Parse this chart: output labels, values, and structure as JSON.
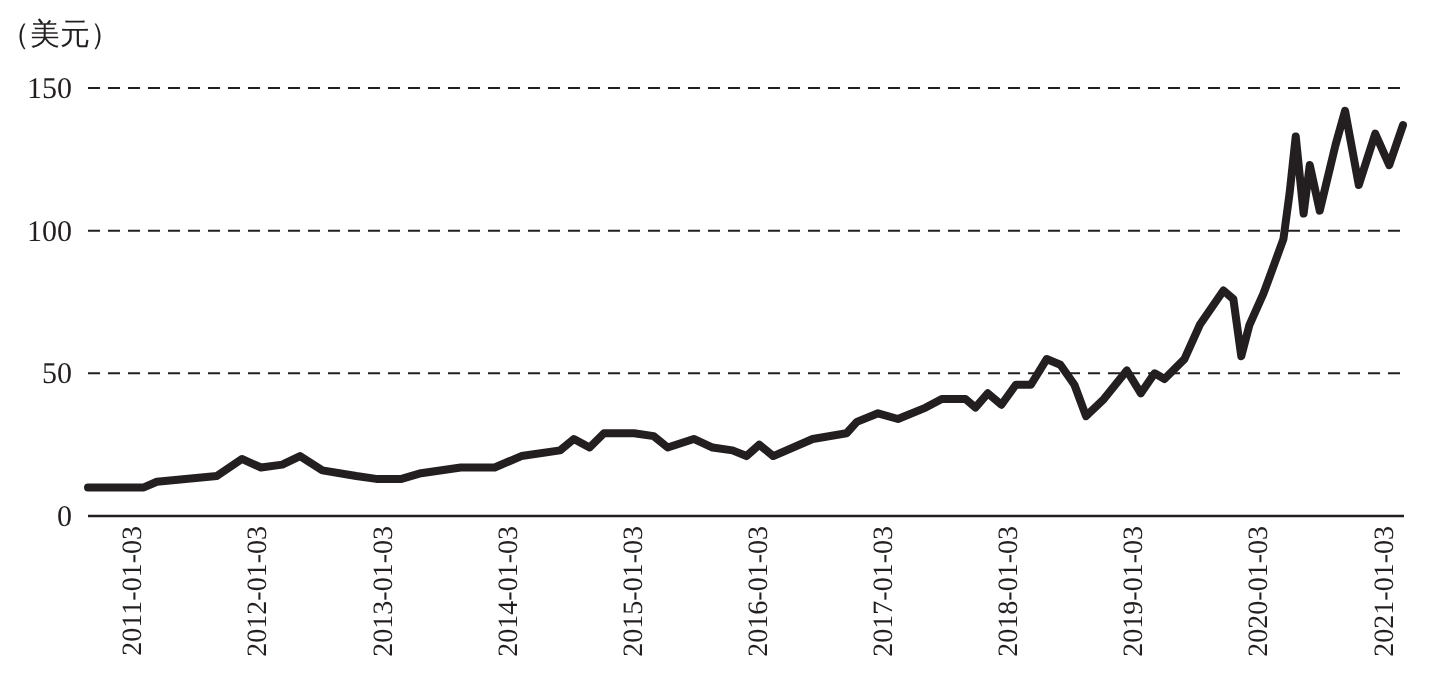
{
  "chart_data": {
    "type": "line",
    "ylabel": "（美元）",
    "x": [
      "2010-08-21",
      "2011-01-31",
      "2011-03-10",
      "2011-09-01",
      "2011-11-13",
      "2012-01-08",
      "2012-03-10",
      "2012-05-01",
      "2012-07-05",
      "2012-10-12",
      "2012-12-09",
      "2013-02-21",
      "2013-04-19",
      "2013-08-13",
      "2013-11-20",
      "2014-02-06",
      "2014-05-30",
      "2014-07-09",
      "2014-08-24",
      "2014-10-05",
      "2015-01-01",
      "2015-02-27",
      "2015-04-09",
      "2015-06-24",
      "2015-08-18",
      "2015-10-15",
      "2015-11-25",
      "2016-01-01",
      "2016-02-11",
      "2016-06-05",
      "2016-09-12",
      "2016-10-12",
      "2016-12-13",
      "2017-02-09",
      "2017-05-01",
      "2017-06-17",
      "2017-08-25",
      "2017-09-23",
      "2017-10-29",
      "2017-12-08",
      "2018-01-19",
      "2018-03-04",
      "2018-04-19",
      "2018-05-29",
      "2018-07-09",
      "2018-08-12",
      "2018-10-03",
      "2018-12-09",
      "2019-01-19",
      "2019-02-28",
      "2019-03-29",
      "2019-05-26",
      "2019-07-10",
      "2019-09-17",
      "2019-10-16",
      "2019-11-08",
      "2019-12-02",
      "2020-01-12",
      "2020-03-10",
      "2020-03-28",
      "2020-04-15",
      "2020-05-08",
      "2020-05-26",
      "2020-06-24",
      "2020-08-09",
      "2020-09-06",
      "2020-10-16",
      "2020-12-03",
      "2021-01-13",
      "2021-02-22"
    ],
    "series": [
      {
        "color": "#231f20",
        "values": [
          10,
          10,
          12,
          14,
          20,
          17,
          18,
          21,
          16,
          14,
          13,
          13,
          15,
          17,
          17,
          21,
          23,
          27,
          24,
          29,
          29,
          28,
          24,
          27,
          24,
          23,
          21,
          25,
          21,
          27,
          29,
          33,
          36,
          34,
          38,
          41,
          41,
          38,
          43,
          39,
          46,
          46,
          55,
          53,
          46,
          35,
          41,
          51,
          43,
          50,
          48,
          55,
          67,
          79,
          76,
          56,
          67,
          78,
          97,
          113,
          133,
          106,
          123,
          107,
          130,
          142,
          116,
          134,
          123,
          137
        ]
      }
    ],
    "xlim": [
      "2010-08-21",
      "2021-02-25"
    ],
    "xticks": [
      "2011-01-03",
      "2012-01-03",
      "2013-01-03",
      "2014-01-03",
      "2015-01-03",
      "2016-01-03",
      "2017-01-03",
      "2018-01-03",
      "2019-01-03",
      "2020-01-03",
      "2021-01-03"
    ],
    "ylim": [
      0,
      150
    ],
    "yticks": [
      0,
      50,
      100,
      150
    ],
    "grid": "y",
    "marker": "none",
    "line_style": "solid"
  }
}
